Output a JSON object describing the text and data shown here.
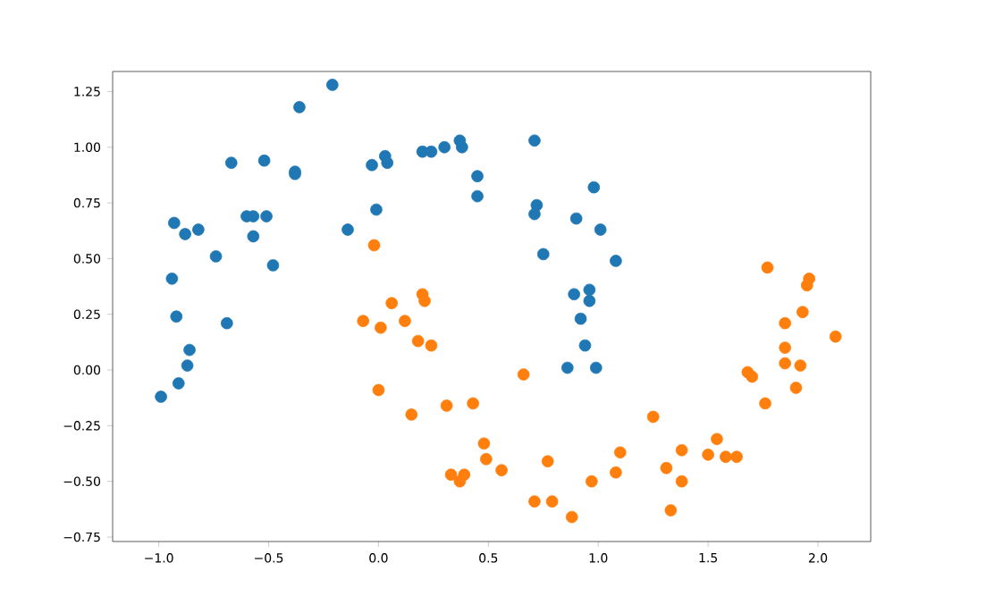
{
  "chart_data": {
    "type": "scatter",
    "grid": false,
    "xlim": [
      -1.21,
      2.24
    ],
    "ylim": [
      -0.77,
      1.34
    ],
    "xticks": [
      {
        "value": -1.0,
        "label": "−1.0"
      },
      {
        "value": -0.5,
        "label": "−0.5"
      },
      {
        "value": 0.0,
        "label": "0.0"
      },
      {
        "value": 0.5,
        "label": "0.5"
      },
      {
        "value": 1.0,
        "label": "1.0"
      },
      {
        "value": 1.5,
        "label": "1.5"
      },
      {
        "value": 2.0,
        "label": "2.0"
      }
    ],
    "yticks": [
      {
        "value": -0.75,
        "label": "−0.75"
      },
      {
        "value": -0.5,
        "label": "−0.50"
      },
      {
        "value": -0.25,
        "label": "−0.25"
      },
      {
        "value": 0.0,
        "label": "0.00"
      },
      {
        "value": 0.25,
        "label": "0.25"
      },
      {
        "value": 0.5,
        "label": "0.50"
      },
      {
        "value": 0.75,
        "label": "0.75"
      },
      {
        "value": 1.0,
        "label": "1.00"
      },
      {
        "value": 1.25,
        "label": "1.25"
      }
    ],
    "series": [
      {
        "color": "#1f77b4",
        "x": [
          -0.99,
          -0.94,
          -0.93,
          -0.92,
          -0.91,
          -0.88,
          -0.82,
          -0.86,
          -0.87,
          -0.74,
          -0.67,
          -0.69,
          -0.6,
          -0.57,
          -0.57,
          -0.52,
          -0.51,
          -0.48,
          -0.38,
          -0.38,
          -0.36,
          -0.21,
          -0.14,
          -0.03,
          -0.01,
          0.03,
          0.04,
          0.2,
          0.24,
          0.3,
          0.37,
          0.38,
          0.45,
          0.45,
          0.71,
          0.98,
          0.72,
          0.71,
          0.9,
          1.01,
          0.75,
          1.08,
          0.89,
          0.96,
          0.96,
          0.92,
          0.94,
          0.86,
          0.99
        ],
        "values": [
          -0.12,
          0.41,
          0.66,
          0.24,
          -0.06,
          0.61,
          0.63,
          0.09,
          0.02,
          0.51,
          0.93,
          0.21,
          0.69,
          0.69,
          0.6,
          0.94,
          0.69,
          0.47,
          0.89,
          0.88,
          1.18,
          1.28,
          0.63,
          0.92,
          0.72,
          0.96,
          0.93,
          0.98,
          0.98,
          1.0,
          1.03,
          1.0,
          0.87,
          0.78,
          1.03,
          0.82,
          0.74,
          0.7,
          0.68,
          0.63,
          0.52,
          0.49,
          0.34,
          0.36,
          0.31,
          0.23,
          0.11,
          0.01,
          0.01
        ]
      },
      {
        "color": "#ff7f0e",
        "x": [
          -0.02,
          -0.07,
          0.01,
          0.06,
          0.12,
          0.2,
          0.21,
          0.18,
          0.24,
          0.0,
          0.15,
          0.31,
          0.33,
          0.37,
          0.39,
          0.66,
          0.43,
          0.48,
          0.49,
          0.56,
          0.77,
          0.71,
          0.79,
          0.88,
          0.97,
          1.08,
          1.1,
          1.25,
          1.31,
          1.33,
          1.38,
          1.38,
          1.5,
          1.54,
          1.58,
          1.63,
          1.68,
          1.7,
          1.76,
          1.77,
          1.85,
          1.85,
          1.85,
          1.92,
          1.9,
          1.93,
          1.95,
          1.96,
          2.08
        ],
        "values": [
          0.56,
          0.22,
          0.19,
          0.3,
          0.22,
          0.34,
          0.31,
          0.13,
          0.11,
          -0.09,
          -0.2,
          -0.16,
          -0.47,
          -0.5,
          -0.47,
          -0.02,
          -0.15,
          -0.33,
          -0.4,
          -0.45,
          -0.41,
          -0.59,
          -0.59,
          -0.66,
          -0.5,
          -0.46,
          -0.37,
          -0.21,
          -0.44,
          -0.63,
          -0.36,
          -0.5,
          -0.38,
          -0.31,
          -0.39,
          -0.39,
          -0.01,
          -0.03,
          -0.15,
          0.46,
          0.21,
          0.1,
          0.03,
          0.02,
          -0.08,
          0.26,
          0.38,
          0.41,
          0.15
        ]
      }
    ]
  }
}
